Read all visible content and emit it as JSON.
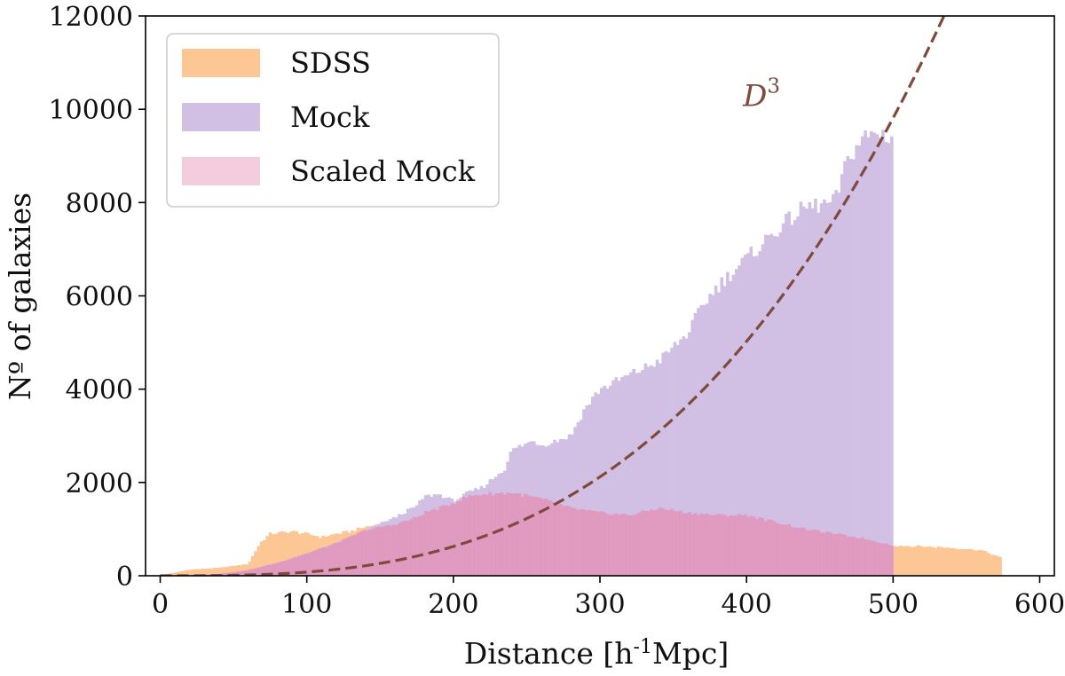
{
  "chart_data": {
    "type": "bar",
    "xlabel": "Distance [h",
    "xlabel_sup": "-1",
    "xlabel_tail": "Mpc]",
    "ylabel": "Nº of galaxies",
    "xlim": [
      -10,
      610
    ],
    "ylim": [
      0,
      12000
    ],
    "xticks": [
      0,
      100,
      200,
      300,
      400,
      500,
      600
    ],
    "yticks": [
      0,
      2000,
      4000,
      6000,
      8000,
      10000,
      12000
    ],
    "bin_width": 2,
    "legend_position": "top-left",
    "annotation": {
      "base": "D",
      "sup": "3",
      "anchor_x": 400,
      "anchor_y": 10300
    },
    "colors": {
      "sdss": "#fcc794",
      "mock": "#d2c0e4",
      "scaled": "#e48fb6",
      "curve": "#7d4a3c",
      "axis": "#000000"
    },
    "series": [
      {
        "name": "SDSS",
        "knots_x": [
          0,
          20,
          40,
          60,
          68,
          75,
          90,
          100,
          110,
          120,
          130,
          140,
          150,
          160,
          170,
          180,
          195,
          210,
          220,
          240,
          260,
          280,
          300,
          320,
          340,
          360,
          380,
          400,
          420,
          440,
          460,
          480,
          500,
          520,
          540,
          560,
          574
        ],
        "knots_y": [
          10,
          130,
          170,
          250,
          700,
          900,
          950,
          900,
          830,
          900,
          950,
          1050,
          1100,
          1200,
          1300,
          1400,
          1500,
          1700,
          1750,
          1800,
          1650,
          1500,
          1400,
          1300,
          1450,
          1350,
          1300,
          1300,
          1150,
          1000,
          900,
          800,
          650,
          630,
          600,
          550,
          380
        ]
      },
      {
        "name": "Mock",
        "knots_x": [
          0,
          20,
          40,
          60,
          80,
          100,
          120,
          140,
          160,
          175,
          180,
          190,
          200,
          210,
          220,
          235,
          240,
          255,
          260,
          280,
          290,
          300,
          320,
          340,
          360,
          370,
          380,
          400,
          420,
          440,
          460,
          470,
          480,
          490,
          500
        ],
        "knots_y": [
          0,
          10,
          40,
          120,
          280,
          480,
          700,
          980,
          1250,
          1500,
          1700,
          1750,
          1600,
          1780,
          1900,
          2300,
          2700,
          2900,
          2800,
          3000,
          3600,
          4000,
          4300,
          4600,
          5200,
          5800,
          6200,
          6800,
          7400,
          7900,
          8000,
          9000,
          9400,
          9500,
          9400
        ]
      },
      {
        "name": "Scaled Mock",
        "knots_x": [
          0,
          20,
          40,
          60,
          80,
          100,
          120,
          140,
          160,
          175,
          180,
          195,
          210,
          220,
          240,
          260,
          280,
          300,
          320,
          340,
          360,
          380,
          400,
          420,
          440,
          460,
          480,
          500
        ],
        "knots_y": [
          0,
          10,
          40,
          120,
          280,
          480,
          700,
          980,
          1100,
          1250,
          1350,
          1500,
          1700,
          1750,
          1780,
          1650,
          1450,
          1350,
          1300,
          1450,
          1350,
          1300,
          1300,
          1150,
          1000,
          900,
          800,
          650
        ]
      }
    ],
    "curve": {
      "name": "D3",
      "coefficient": 7.85e-05,
      "exponent": 3,
      "x_end": 540
    }
  }
}
